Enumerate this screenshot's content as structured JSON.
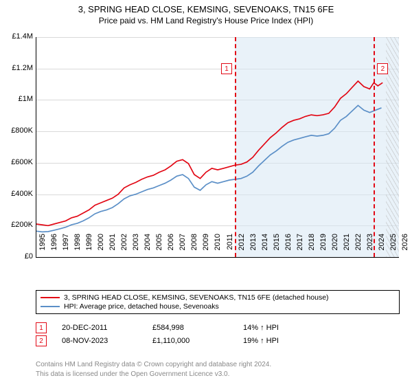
{
  "title": "3, SPRING HEAD CLOSE, KEMSING, SEVENOAKS, TN15 6FE",
  "subtitle": "Price paid vs. HM Land Registry's House Price Index (HPI)",
  "chart": {
    "type": "line",
    "background_color": "#ffffff",
    "grid_color": "#d9d9d9",
    "shade_color": "#d7e7f4",
    "shade_opacity": 0.55,
    "hatched_from_year": 2024.9,
    "x": {
      "min": 1995,
      "max": 2026,
      "ticks": [
        1995,
        1996,
        1997,
        1998,
        1999,
        2000,
        2001,
        2002,
        2003,
        2004,
        2005,
        2006,
        2007,
        2008,
        2009,
        2010,
        2011,
        2012,
        2013,
        2014,
        2015,
        2016,
        2017,
        2018,
        2019,
        2020,
        2021,
        2022,
        2023,
        2024,
        2025,
        2026
      ],
      "fontsize": 11
    },
    "y": {
      "min": 0,
      "max": 1400000,
      "ticks": [
        0,
        200000,
        400000,
        600000,
        800000,
        1000000,
        1200000,
        1400000
      ],
      "labels": [
        "£0",
        "£200K",
        "£400K",
        "£600K",
        "£800K",
        "£1M",
        "£1.2M",
        "£1.4M"
      ],
      "fontsize": 11
    },
    "series": [
      {
        "name": "3, SPRING HEAD CLOSE, KEMSING, SEVENOAKS, TN15 6FE (detached house)",
        "color": "#e20714",
        "line_width": 1.7,
        "data": [
          [
            1995,
            210000
          ],
          [
            1995.5,
            205000
          ],
          [
            1996,
            200000
          ],
          [
            1996.5,
            210000
          ],
          [
            1997,
            220000
          ],
          [
            1997.5,
            230000
          ],
          [
            1998,
            250000
          ],
          [
            1998.5,
            260000
          ],
          [
            1999,
            280000
          ],
          [
            1999.5,
            300000
          ],
          [
            2000,
            330000
          ],
          [
            2000.5,
            345000
          ],
          [
            2001,
            360000
          ],
          [
            2001.5,
            375000
          ],
          [
            2002,
            400000
          ],
          [
            2002.5,
            440000
          ],
          [
            2003,
            460000
          ],
          [
            2003.5,
            475000
          ],
          [
            2004,
            495000
          ],
          [
            2004.5,
            510000
          ],
          [
            2005,
            520000
          ],
          [
            2005.5,
            540000
          ],
          [
            2006,
            555000
          ],
          [
            2006.5,
            580000
          ],
          [
            2007,
            610000
          ],
          [
            2007.5,
            620000
          ],
          [
            2008,
            595000
          ],
          [
            2008.5,
            525000
          ],
          [
            2009,
            500000
          ],
          [
            2009.5,
            540000
          ],
          [
            2010,
            565000
          ],
          [
            2010.5,
            555000
          ],
          [
            2011,
            565000
          ],
          [
            2011.5,
            575000
          ],
          [
            2011.97,
            585000
          ],
          [
            2012.5,
            590000
          ],
          [
            2013,
            605000
          ],
          [
            2013.5,
            635000
          ],
          [
            2014,
            680000
          ],
          [
            2014.5,
            720000
          ],
          [
            2015,
            760000
          ],
          [
            2015.5,
            790000
          ],
          [
            2016,
            825000
          ],
          [
            2016.5,
            855000
          ],
          [
            2017,
            870000
          ],
          [
            2017.5,
            880000
          ],
          [
            2018,
            895000
          ],
          [
            2018.5,
            905000
          ],
          [
            2019,
            900000
          ],
          [
            2019.5,
            905000
          ],
          [
            2020,
            915000
          ],
          [
            2020.5,
            955000
          ],
          [
            2021,
            1010000
          ],
          [
            2021.5,
            1040000
          ],
          [
            2022,
            1080000
          ],
          [
            2022.5,
            1120000
          ],
          [
            2023,
            1085000
          ],
          [
            2023.5,
            1070000
          ],
          [
            2023.85,
            1110000
          ],
          [
            2024.2,
            1090000
          ],
          [
            2024.6,
            1110000
          ]
        ]
      },
      {
        "name": "HPI: Average price, detached house, Sevenoaks",
        "color": "#5b8fc7",
        "line_width": 1.6,
        "data": [
          [
            1995,
            165000
          ],
          [
            1995.5,
            160000
          ],
          [
            1996,
            162000
          ],
          [
            1996.5,
            170000
          ],
          [
            1997,
            180000
          ],
          [
            1997.5,
            190000
          ],
          [
            1998,
            205000
          ],
          [
            1998.5,
            215000
          ],
          [
            1999,
            230000
          ],
          [
            1999.5,
            250000
          ],
          [
            2000,
            275000
          ],
          [
            2000.5,
            290000
          ],
          [
            2001,
            300000
          ],
          [
            2001.5,
            315000
          ],
          [
            2002,
            340000
          ],
          [
            2002.5,
            370000
          ],
          [
            2003,
            390000
          ],
          [
            2003.5,
            400000
          ],
          [
            2004,
            415000
          ],
          [
            2004.5,
            430000
          ],
          [
            2005,
            440000
          ],
          [
            2005.5,
            455000
          ],
          [
            2006,
            470000
          ],
          [
            2006.5,
            490000
          ],
          [
            2007,
            515000
          ],
          [
            2007.5,
            525000
          ],
          [
            2008,
            500000
          ],
          [
            2008.5,
            445000
          ],
          [
            2009,
            425000
          ],
          [
            2009.5,
            460000
          ],
          [
            2010,
            480000
          ],
          [
            2010.5,
            470000
          ],
          [
            2011,
            480000
          ],
          [
            2011.5,
            490000
          ],
          [
            2012,
            495000
          ],
          [
            2012.5,
            500000
          ],
          [
            2013,
            515000
          ],
          [
            2013.5,
            540000
          ],
          [
            2014,
            580000
          ],
          [
            2014.5,
            615000
          ],
          [
            2015,
            650000
          ],
          [
            2015.5,
            675000
          ],
          [
            2016,
            705000
          ],
          [
            2016.5,
            730000
          ],
          [
            2017,
            745000
          ],
          [
            2017.5,
            755000
          ],
          [
            2018,
            765000
          ],
          [
            2018.5,
            775000
          ],
          [
            2019,
            770000
          ],
          [
            2019.5,
            775000
          ],
          [
            2020,
            785000
          ],
          [
            2020.5,
            820000
          ],
          [
            2021,
            870000
          ],
          [
            2021.5,
            895000
          ],
          [
            2022,
            930000
          ],
          [
            2022.5,
            965000
          ],
          [
            2023,
            935000
          ],
          [
            2023.5,
            920000
          ],
          [
            2024,
            935000
          ],
          [
            2024.5,
            950000
          ]
        ]
      }
    ],
    "sale_markers": [
      {
        "n": "1",
        "year": 2011.97,
        "color": "#e20714"
      },
      {
        "n": "2",
        "year": 2023.85,
        "color": "#e20714"
      }
    ],
    "shade_from_year": 2011.97
  },
  "legend": {
    "border_color": "#000000"
  },
  "sales": [
    {
      "n": "1",
      "date": "20-DEC-2011",
      "price": "£584,998",
      "diff": "14% ↑ HPI",
      "color": "#e20714"
    },
    {
      "n": "2",
      "date": "08-NOV-2023",
      "price": "£1,110,000",
      "diff": "19% ↑ HPI",
      "color": "#e20714"
    }
  ],
  "footer": {
    "line1": "Contains HM Land Registry data © Crown copyright and database right 2024.",
    "line2": "This data is licensed under the Open Government Licence v3.0."
  }
}
